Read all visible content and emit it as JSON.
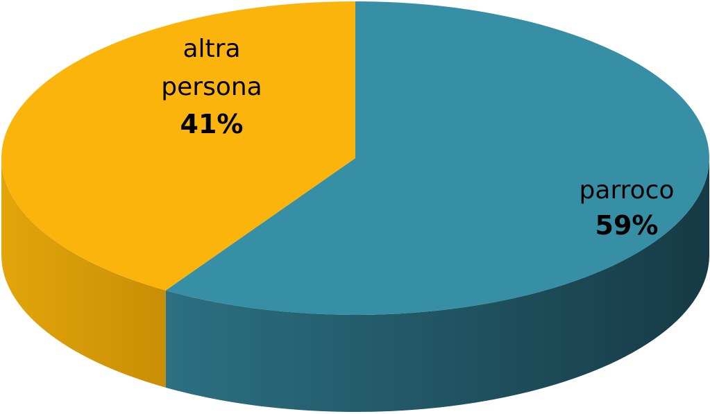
{
  "chart_data": {
    "type": "pie",
    "style": "3d",
    "title": "",
    "slices": [
      {
        "label": "parroco",
        "value": 59,
        "display": "59%",
        "color": "#378fa6",
        "side_color": "#1f5565"
      },
      {
        "label": "altra persona",
        "label_lines": [
          "altra",
          "persona"
        ],
        "value": 41,
        "display": "41%",
        "color": "#fbb40b",
        "side_color": "#d99a07"
      }
    ]
  }
}
